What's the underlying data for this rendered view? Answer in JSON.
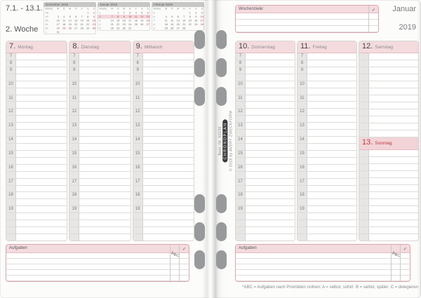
{
  "hours": [
    "7",
    "8",
    "9",
    "10",
    "11",
    "12",
    "13",
    "14",
    "15",
    "16",
    "17",
    "18",
    "19"
  ],
  "left_page": {
    "date_range": "7.1. - 13.1.",
    "week_label": "2. Woche",
    "mini_calendars": [
      {
        "title": "Dezember 2018",
        "weekday_header": [
          "Woche",
          "M",
          "D",
          "M",
          "D",
          "F",
          "S",
          "S"
        ],
        "rows": [
          {
            "week": "48",
            "days": [
              "",
              "",
              "",
              "",
              "",
              "1",
              "2"
            ],
            "red": [
              6
            ],
            "highlight": false
          },
          {
            "week": "49",
            "days": [
              "3",
              "4",
              "5",
              "6",
              "7",
              "8",
              "9"
            ],
            "red": [
              6
            ],
            "highlight": false
          },
          {
            "week": "50",
            "days": [
              "10",
              "11",
              "12",
              "13",
              "14",
              "15",
              "16"
            ],
            "red": [
              6
            ],
            "highlight": false
          },
          {
            "week": "51",
            "days": [
              "17",
              "18",
              "19",
              "20",
              "21",
              "22",
              "23"
            ],
            "red": [
              6
            ],
            "highlight": false
          },
          {
            "week": "52",
            "days": [
              "24",
              "25",
              "26",
              "27",
              "28",
              "29",
              "30"
            ],
            "red": [
              1,
              2,
              6
            ],
            "highlight": false
          },
          {
            "week": "1",
            "days": [
              "31",
              "",
              "",
              "",
              "",
              "",
              ""
            ],
            "red": [],
            "highlight": false
          }
        ]
      },
      {
        "title": "Januar 2019",
        "weekday_header": [
          "Woche",
          "M",
          "D",
          "M",
          "D",
          "F",
          "S",
          "S"
        ],
        "rows": [
          {
            "week": "1",
            "days": [
              "",
              "1",
              "2",
              "3",
              "4",
              "5",
              "6"
            ],
            "red": [
              1,
              6
            ],
            "highlight": false
          },
          {
            "week": "2",
            "days": [
              "7",
              "8",
              "9",
              "10",
              "11",
              "12",
              "13"
            ],
            "red": [
              6
            ],
            "highlight": true
          },
          {
            "week": "3",
            "days": [
              "14",
              "15",
              "16",
              "17",
              "18",
              "19",
              "20"
            ],
            "red": [
              6
            ],
            "highlight": false
          },
          {
            "week": "4",
            "days": [
              "21",
              "22",
              "23",
              "24",
              "25",
              "26",
              "27"
            ],
            "red": [
              6
            ],
            "highlight": false
          },
          {
            "week": "5",
            "days": [
              "28",
              "29",
              "30",
              "31",
              "",
              "",
              ""
            ],
            "red": [],
            "highlight": false
          }
        ]
      },
      {
        "title": "Februar 2019",
        "weekday_header": [
          "Woche",
          "M",
          "D",
          "M",
          "D",
          "F",
          "S",
          "S"
        ],
        "rows": [
          {
            "week": "5",
            "days": [
              "",
              "",
              "",
              "",
              "1",
              "2",
              "3"
            ],
            "red": [
              6
            ],
            "highlight": false
          },
          {
            "week": "6",
            "days": [
              "4",
              "5",
              "6",
              "7",
              "8",
              "9",
              "10"
            ],
            "red": [
              6
            ],
            "highlight": false
          },
          {
            "week": "7",
            "days": [
              "11",
              "12",
              "13",
              "14",
              "15",
              "16",
              "17"
            ],
            "red": [
              6
            ],
            "highlight": false
          },
          {
            "week": "8",
            "days": [
              "18",
              "19",
              "20",
              "21",
              "22",
              "23",
              "24"
            ],
            "red": [
              6
            ],
            "highlight": false
          },
          {
            "week": "9",
            "days": [
              "25",
              "26",
              "27",
              "28",
              "",
              "",
              ""
            ],
            "red": [],
            "highlight": false
          }
        ]
      }
    ],
    "days": [
      {
        "number": "7.",
        "name": "Montag"
      },
      {
        "number": "8.",
        "name": "Dienstag"
      },
      {
        "number": "9.",
        "name": "Mittwoch"
      }
    ],
    "tasks": {
      "title": "Aufgaben",
      "priority_label": "ABC",
      "check_label": "✓"
    }
  },
  "right_page": {
    "goals": {
      "title": "Wochenziele:",
      "check_label": "✓"
    },
    "month": "Januar",
    "year": "2019",
    "days": [
      {
        "number": "10.",
        "name": "Donnerstag"
      },
      {
        "number": "11.",
        "name": "Freitag"
      },
      {
        "number": "12.",
        "name": "Samstag"
      }
    ],
    "sunday": {
      "number": "13.",
      "name": "Sonntag"
    },
    "tasks": {
      "title": "Aufgaben",
      "priority_label": "ABC",
      "check_label": "✓"
    },
    "footnote": "*ABC = Aufgaben nach Prioritäten ordnen: A = selbst, sofort  B = selbst, später  C = delegieren"
  },
  "binding": {
    "order_number": "Best.-Nr. 50239",
    "brand": "CHRONOPLAN",
    "copyright": "© 2018 by AVERY ZWECKFORM"
  },
  "colors": {
    "accent_pink": "#f3dbde",
    "accent_red": "#bf3a3d",
    "box_border": "#d9a7ad",
    "grid_line": "#dddcda",
    "gutter_gray": "#e7e6e4",
    "hole_gray": "#97999b",
    "cal_header_gray": "#c7c7c5"
  }
}
